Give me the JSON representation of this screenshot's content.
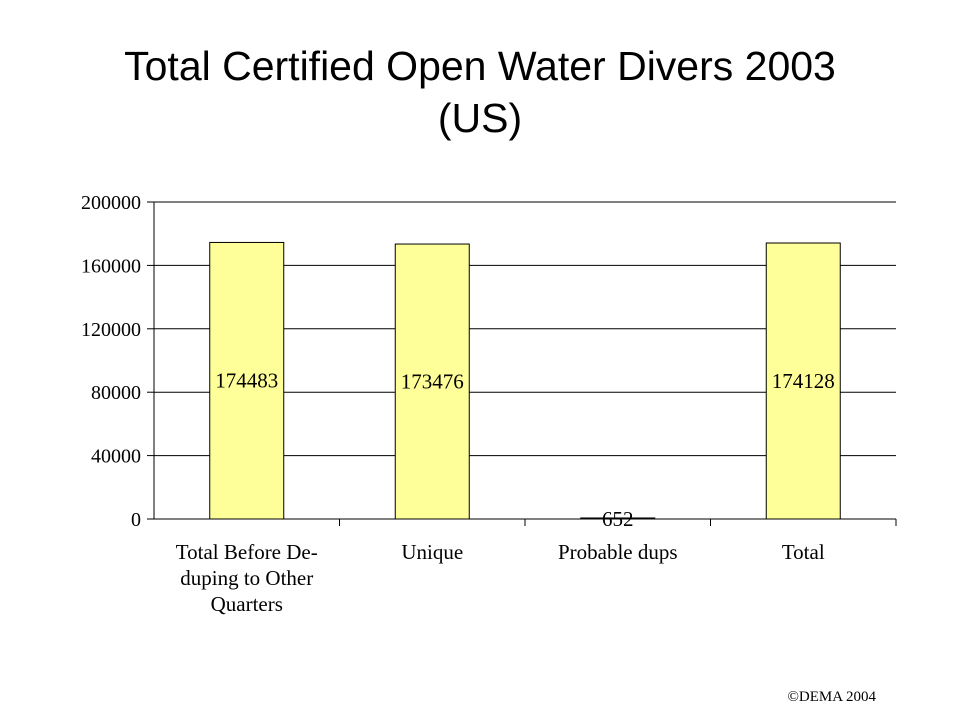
{
  "slide": {
    "title_line1": "Total Certified Open Water Divers 2003",
    "title_line2": "(US)",
    "footer": "©DEMA 2004"
  },
  "chart_data": {
    "type": "bar",
    "title": "Total Certified Open Water Divers 2003 (US)",
    "categories": [
      [
        "Total Before De-",
        "duping to Other",
        "Quarters"
      ],
      [
        "Unique"
      ],
      [
        "Probable dups"
      ],
      [
        "Total"
      ]
    ],
    "values": [
      174483,
      173476,
      652,
      174128
    ],
    "data_labels": [
      "174483",
      "173476",
      "652",
      "174128"
    ],
    "ylim": [
      0,
      200000
    ],
    "yticks": [
      0,
      40000,
      80000,
      120000,
      160000,
      200000
    ],
    "ytick_labels": [
      "0",
      "40000",
      "80000",
      "120000",
      "160000",
      "200000"
    ],
    "xlabel": "",
    "ylabel": "",
    "grid": true,
    "legend": "none",
    "colors": {
      "bar_fill": "#FFFF99",
      "bar_stroke": "#000000",
      "grid": "#000000"
    }
  }
}
